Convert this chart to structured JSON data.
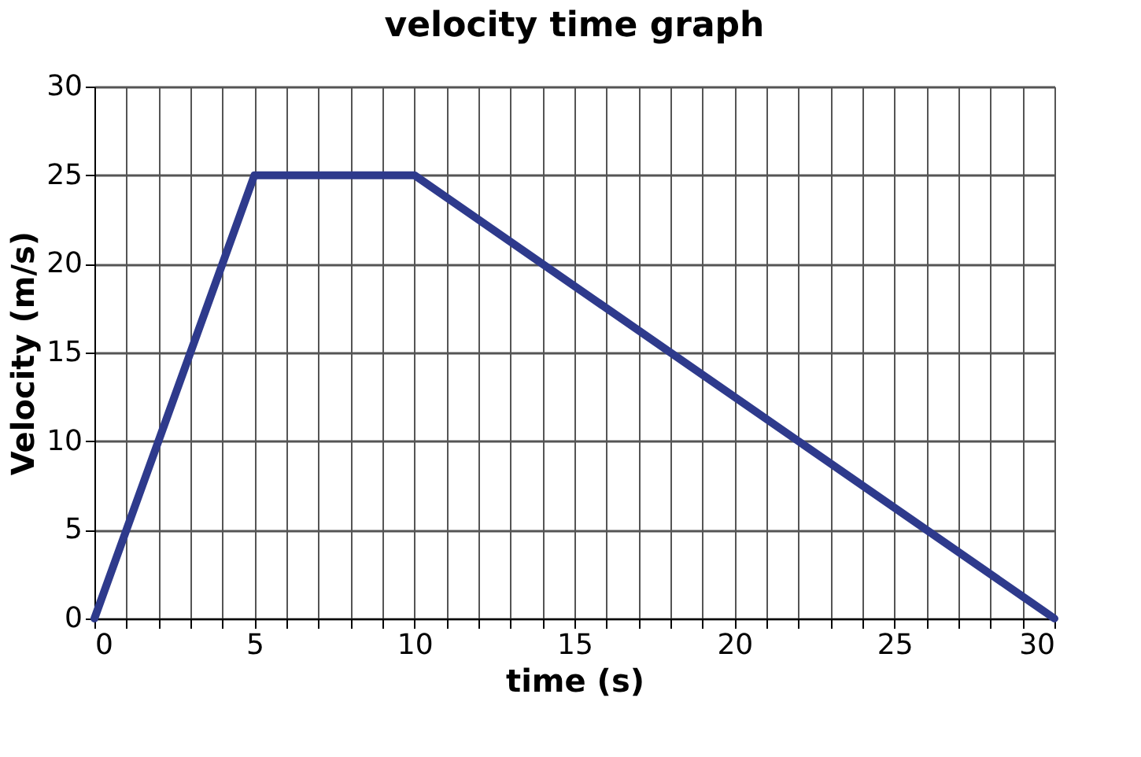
{
  "chart_data": {
    "type": "line",
    "title": "velocity time graph",
    "xlabel": "time (s)",
    "ylabel": "Velocity (m/s)",
    "x": [
      0,
      5,
      10,
      30
    ],
    "series": [
      {
        "color": "#2e3a8c",
        "values": [
          0,
          25,
          25,
          0
        ]
      }
    ],
    "xlim": [
      0,
      30
    ],
    "xticks": [
      0,
      {
        "value": 1,
        "label": null
      },
      {
        "value": 2,
        "label": null
      },
      {
        "value": 3,
        "label": null
      },
      {
        "value": 4,
        "label": null
      },
      5,
      {
        "value": 6,
        "label": null
      },
      {
        "value": 7,
        "label": null
      },
      {
        "value": 8,
        "label": null
      },
      {
        "value": 9,
        "label": null
      },
      10,
      {
        "value": 11,
        "label": null
      },
      {
        "value": 12,
        "label": null
      },
      {
        "value": 13,
        "label": null
      },
      {
        "value": 14,
        "label": null
      },
      15,
      {
        "value": 16,
        "label": null
      },
      {
        "value": 17,
        "label": null
      },
      {
        "value": 18,
        "label": null
      },
      {
        "value": 19,
        "label": null
      },
      20,
      {
        "value": 21,
        "label": null
      },
      {
        "value": 22,
        "label": null
      },
      {
        "value": 23,
        "label": null
      },
      {
        "value": 24,
        "label": null
      },
      25,
      {
        "value": 26,
        "label": null
      },
      {
        "value": 27,
        "label": null
      },
      {
        "value": 28,
        "label": null
      },
      {
        "value": 29,
        "label": null
      },
      30
    ],
    "ylim": [
      0,
      30
    ],
    "yticks": [
      0,
      5,
      10,
      15,
      20,
      25,
      30
    ],
    "grid": true,
    "marker": "none",
    "line_style": "solid"
  }
}
